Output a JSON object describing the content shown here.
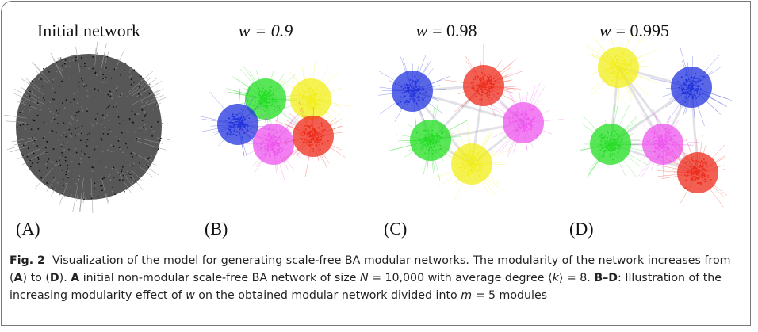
{
  "figure": {
    "panels": [
      {
        "title": [
          {
            "text": "Initial network",
            "italic": false
          }
        ],
        "label": "(A)"
      },
      {
        "title": [
          {
            "text": "w",
            "italic": true
          },
          {
            "text": "= 0.9",
            "italic": true
          }
        ],
        "label": "(B)"
      },
      {
        "title": [
          {
            "text": "w",
            "italic": true
          },
          {
            "text": "= 0.98",
            "italic": false
          }
        ],
        "label": "(C)"
      },
      {
        "title": [
          {
            "text": "w",
            "italic": true
          },
          {
            "text": "= 0.995",
            "italic": false
          }
        ],
        "label": "(D)"
      }
    ],
    "caption": [
      {
        "text": "Fig. 2",
        "bold": true,
        "italic": false
      },
      {
        "text": "  Visualization of the model for generating scale-free BA modular networks. The modularity of the network increases from (",
        "bold": false,
        "italic": false
      },
      {
        "text": "A",
        "bold": true,
        "italic": false
      },
      {
        "text": ") to (",
        "bold": false,
        "italic": false
      },
      {
        "text": "D",
        "bold": true,
        "italic": false
      },
      {
        "text": "). ",
        "bold": false,
        "italic": false
      },
      {
        "text": "A",
        "bold": true,
        "italic": false
      },
      {
        "text": " initial non-modular scale-free BA network of size ",
        "bold": false,
        "italic": false
      },
      {
        "text": "N",
        "bold": false,
        "italic": true
      },
      {
        "text": " = 10,000 with average degree ⟨",
        "bold": false,
        "italic": false
      },
      {
        "text": "k",
        "bold": false,
        "italic": true
      },
      {
        "text": "⟩ = 8. ",
        "bold": false,
        "italic": false
      },
      {
        "text": "B–D",
        "bold": true,
        "italic": false
      },
      {
        "text": ": Illustration of the increasing modularity effect of ",
        "bold": false,
        "italic": false
      },
      {
        "text": "w",
        "bold": false,
        "italic": true
      },
      {
        "text": " on the obtained modular network divided into ",
        "bold": false,
        "italic": false
      },
      {
        "text": "m",
        "bold": false,
        "italic": true
      },
      {
        "text": " = 5 modules",
        "bold": false,
        "italic": false
      }
    ]
  }
}
